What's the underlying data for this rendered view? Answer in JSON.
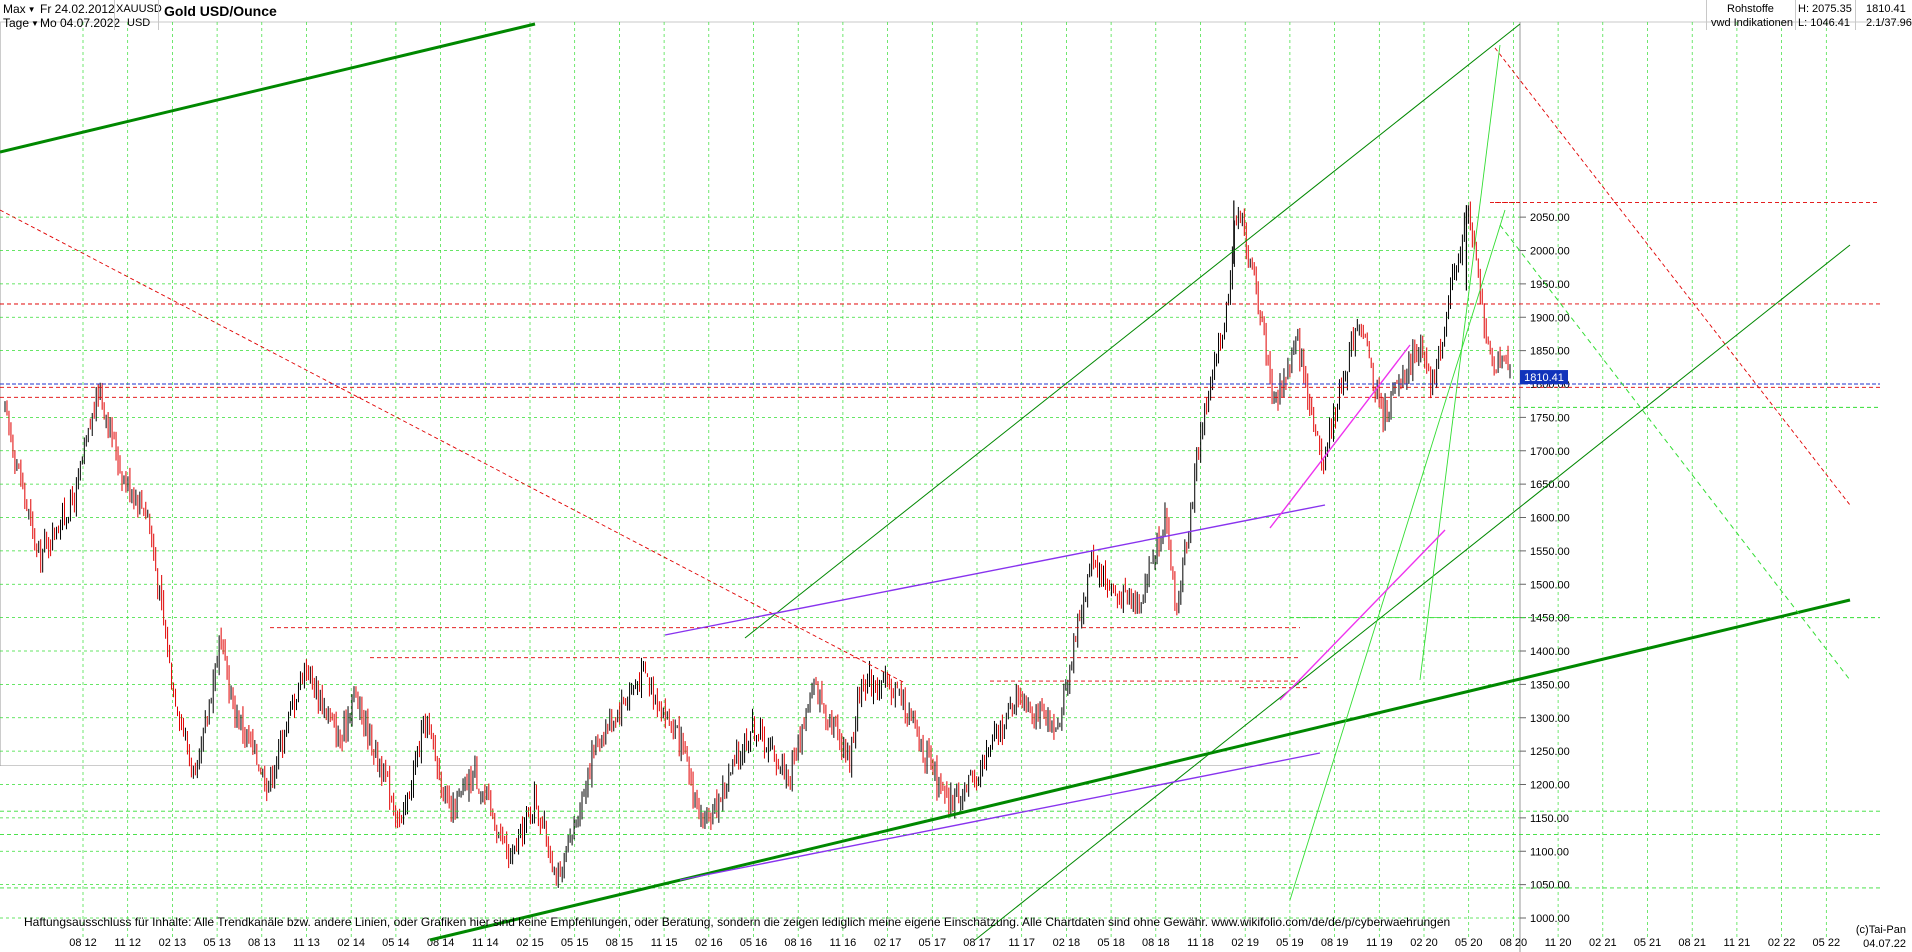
{
  "header": {
    "range_label": "Max",
    "start_date": "Fr 24.02.2012",
    "end_date": "Mo 04.07.2022",
    "interval_label": "Tage",
    "symbol": "XAUUSD",
    "currency": "USD",
    "title": "Gold USD/Ounce",
    "category": "Rohstoffe",
    "source": "vwd Indikationen",
    "high_label": "H: 2075.35",
    "low_label": "L: 1046.41",
    "last_value": "1810.41",
    "change_label": "2.1/37.96"
  },
  "disclaimer": "Haftungsausschluss für Inhalte: Alle Trendkanäle bzw. andere Linien, oder Grafiken hier sind keine Empfehlungen, oder Beratung, sondern die zeigen lediglich meine eigene Einschätzung. Alle Chartdaten sind ohne Gewähr.  www.wikifolio.com/de/de/p/cyberwaehrungen",
  "footer": {
    "copyright": "(c)Tai-Pan",
    "date": "04.07.22"
  },
  "colors": {
    "up": "#000000",
    "down": "#e00000",
    "grid": "#33dd33",
    "trend_dark": "#008800",
    "trend_light": "#33dd33",
    "purple": "#8833ee",
    "magenta": "#ee33ee",
    "red_dash": "#e00000",
    "blue_line": "#2233cc",
    "price_tag": "#1133bb"
  },
  "chart_data": {
    "type": "candlestick",
    "title": "Gold USD/Ounce",
    "x_labels": [
      "08 12",
      "11 12",
      "02 13",
      "05 13",
      "08 13",
      "11 13",
      "02 14",
      "05 14",
      "08 14",
      "11 14",
      "02 15",
      "05 15",
      "08 15",
      "11 15",
      "02 16",
      "05 16",
      "08 16",
      "11 16",
      "02 17",
      "05 17",
      "08 17",
      "11 17",
      "02 18",
      "05 18",
      "08 18",
      "11 18",
      "02 19",
      "05 19",
      "08 19",
      "11 19",
      "02 20",
      "05 20",
      "08 20",
      "11 20",
      "02 21",
      "05 21",
      "08 21",
      "11 21",
      "02 22",
      "05 22"
    ],
    "y_ticks": [
      1000,
      1050,
      1100,
      1150,
      1200,
      1250,
      1300,
      1350,
      1400,
      1450,
      1500,
      1550,
      1600,
      1650,
      1700,
      1750,
      1800,
      1850,
      1900,
      1950,
      2000,
      2050
    ],
    "ylim": [
      1000,
      2075
    ],
    "last_price": 1810.41,
    "high": 2075.35,
    "low": 1046.41,
    "price_path": [
      [
        "2012-02",
        1780
      ],
      [
        "2012-05",
        1540
      ],
      [
        "2012-08",
        1630
      ],
      [
        "2012-10",
        1795
      ],
      [
        "2012-12",
        1660
      ],
      [
        "2013-02",
        1610
      ],
      [
        "2013-04",
        1360
      ],
      [
        "2013-06",
        1200
      ],
      [
        "2013-08",
        1420
      ],
      [
        "2013-09",
        1320
      ],
      [
        "2013-12",
        1200
      ],
      [
        "2014-03",
        1380
      ],
      [
        "2014-06",
        1260
      ],
      [
        "2014-07",
        1340
      ],
      [
        "2014-11",
        1140
      ],
      [
        "2015-01",
        1300
      ],
      [
        "2015-03",
        1150
      ],
      [
        "2015-05",
        1220
      ],
      [
        "2015-08",
        1085
      ],
      [
        "2015-10",
        1180
      ],
      [
        "2015-12",
        1050
      ],
      [
        "2016-03",
        1260
      ],
      [
        "2016-07",
        1370
      ],
      [
        "2016-10",
        1260
      ],
      [
        "2016-12",
        1130
      ],
      [
        "2017-04",
        1290
      ],
      [
        "2017-07",
        1210
      ],
      [
        "2017-09",
        1350
      ],
      [
        "2017-12",
        1240
      ],
      [
        "2018-01",
        1360
      ],
      [
        "2018-04",
        1340
      ],
      [
        "2018-08",
        1170
      ],
      [
        "2018-10",
        1200
      ],
      [
        "2019-02",
        1340
      ],
      [
        "2019-05",
        1275
      ],
      [
        "2019-08",
        1540
      ],
      [
        "2019-10",
        1480
      ],
      [
        "2019-12",
        1480
      ],
      [
        "2020-02",
        1600
      ],
      [
        "2020-03",
        1460
      ],
      [
        "2020-05",
        1730
      ],
      [
        "2020-07",
        1900
      ],
      [
        "2020-08",
        2070
      ],
      [
        "2020-10",
        1900
      ],
      [
        "2020-11",
        1770
      ],
      [
        "2021-01",
        1860
      ],
      [
        "2021-03",
        1680
      ],
      [
        "2021-06",
        1900
      ],
      [
        "2021-08",
        1750
      ],
      [
        "2021-11",
        1860
      ],
      [
        "2021-12",
        1790
      ],
      [
        "2022-03",
        2060
      ],
      [
        "2022-05",
        1820
      ],
      [
        "2022-06",
        1850
      ],
      [
        "2022-07",
        1810
      ]
    ],
    "grid": true
  }
}
